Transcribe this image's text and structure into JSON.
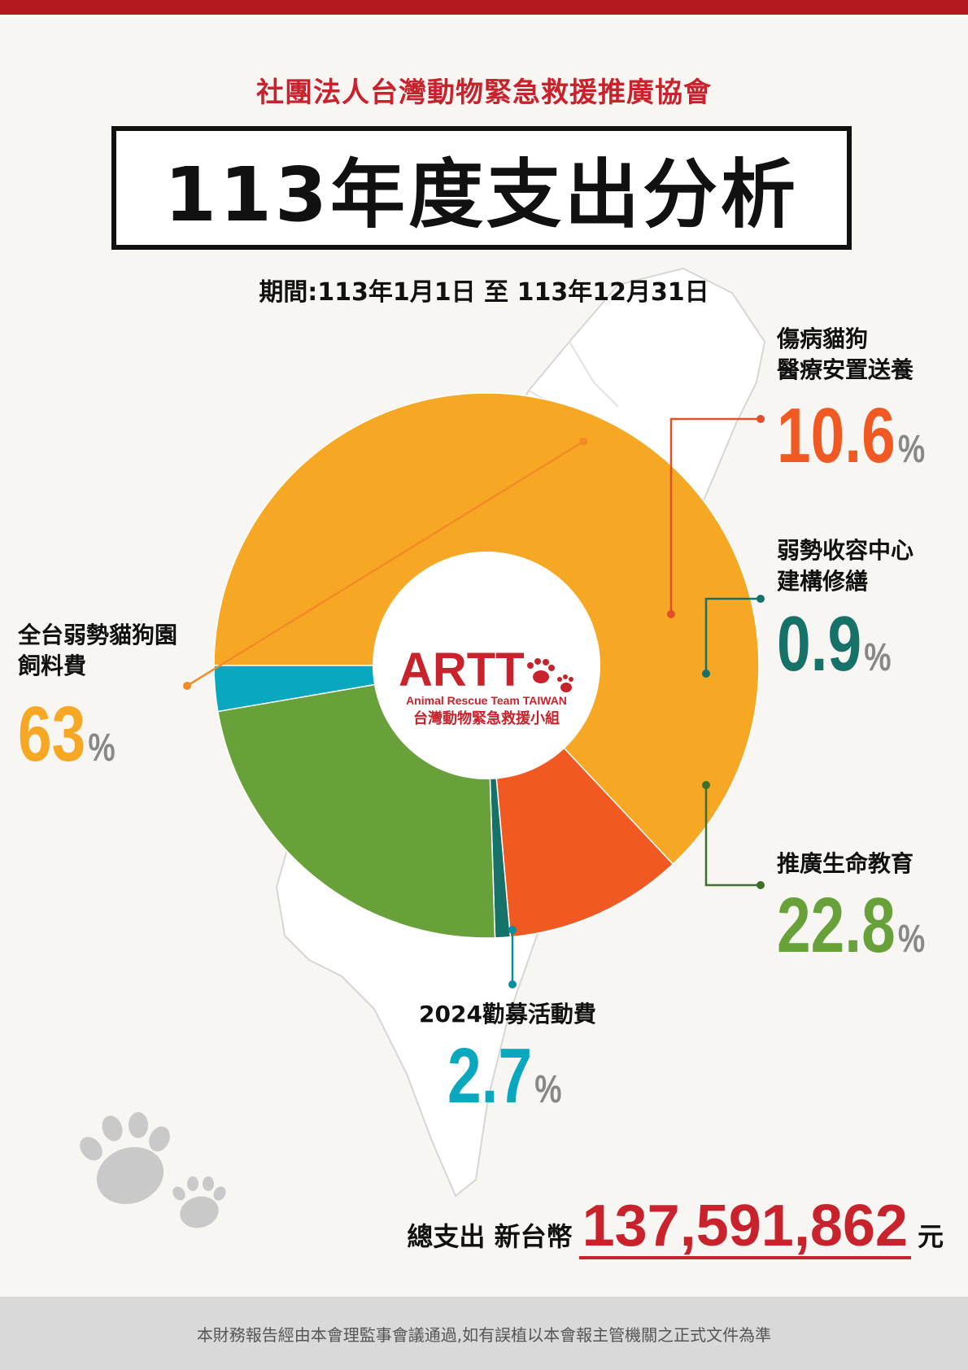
{
  "header": {
    "organization": "社團法人台灣動物緊急救援推廣協會",
    "title": "113年度支出分析",
    "period": "期間:113年1月1日 至 113年12月31日"
  },
  "logo": {
    "name": "ARTT",
    "subtitle_en": "Animal Rescue Team TAIWAN",
    "subtitle_zh": "台灣動物緊急救援小組"
  },
  "chart_data": {
    "type": "pie",
    "series": [
      {
        "label_lines": [
          "全台弱勢貓狗園",
          "飼料費"
        ],
        "value": 63,
        "value_text": "63",
        "color": "#f6a723"
      },
      {
        "label_lines": [
          "傷病貓狗",
          "醫療安置送養"
        ],
        "value": 10.6,
        "value_text": "10.6",
        "color": "#f05a22"
      },
      {
        "label_lines": [
          "弱勢收容中心",
          "建構修繕"
        ],
        "value": 0.9,
        "value_text": "0.9",
        "color": "#167268"
      },
      {
        "label_lines": [
          "推廣生命教育"
        ],
        "value": 22.8,
        "value_text": "22.8",
        "color": "#68a03a"
      },
      {
        "label_lines": [
          "2024勸募活動費"
        ],
        "value": 2.7,
        "value_text": "2.7",
        "color": "#0aa8bf"
      }
    ],
    "unit": "%"
  },
  "total": {
    "label": "總支出 新台幣",
    "amount": "137,591,862",
    "unit": "元"
  },
  "footer": {
    "note": "本財務報告經由本會理監事會議通過,如有誤植以本會報主管機關之正式文件為準"
  },
  "colors": {
    "brand_red": "#c8232c",
    "unit_gray": "#888888"
  }
}
